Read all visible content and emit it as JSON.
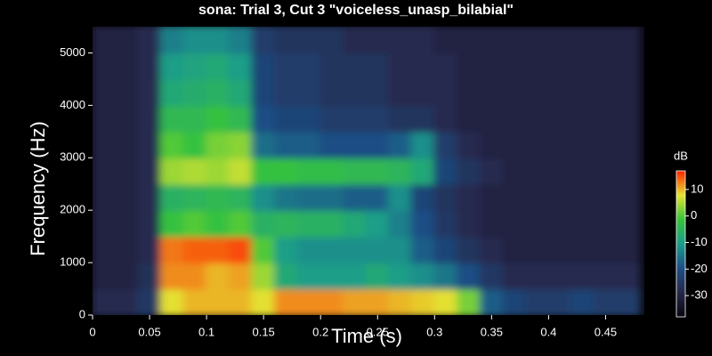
{
  "chart_data": {
    "type": "heatmap",
    "title": "sona: Trial 3, Cut 3 \"voiceless_unasp_bilabial\"",
    "xlabel": "Time (s)",
    "ylabel": "Frequency (Hz)",
    "colorbar_label": "dB",
    "x": [
      0.01,
      0.03,
      0.05,
      0.07,
      0.09,
      0.11,
      0.13,
      0.15,
      0.17,
      0.19,
      0.21,
      0.23,
      0.25,
      0.27,
      0.29,
      0.31,
      0.33,
      0.35,
      0.37,
      0.39,
      0.41,
      0.43,
      0.45,
      0.47
    ],
    "y": [
      250,
      750,
      1250,
      1750,
      2250,
      2750,
      3250,
      3750,
      4250,
      4750,
      5250
    ],
    "values": [
      [
        -28,
        -28,
        -25,
        8,
        10,
        10,
        10,
        8,
        12,
        12,
        12,
        11,
        11,
        10,
        9,
        8,
        2,
        -18,
        -22,
        -24,
        -24,
        -22,
        -24,
        -24
      ],
      [
        -30,
        -30,
        -27,
        12,
        12,
        10,
        11,
        4,
        -8,
        -10,
        -10,
        -10,
        -8,
        -10,
        -12,
        -15,
        -20,
        -25,
        -28,
        -28,
        -28,
        -28,
        -28,
        -28
      ],
      [
        -30,
        -30,
        -28,
        13,
        14,
        14,
        15,
        0,
        -10,
        -12,
        -12,
        -12,
        -12,
        -12,
        -18,
        -22,
        -26,
        -28,
        -30,
        -30,
        -30,
        -30,
        -30,
        -30
      ],
      [
        -30,
        -30,
        -28,
        -2,
        0,
        -2,
        0,
        -6,
        -5,
        -6,
        -6,
        -8,
        -10,
        -14,
        -20,
        -25,
        -28,
        -30,
        -30,
        -30,
        -30,
        -30,
        -30,
        -30
      ],
      [
        -30,
        -30,
        -28,
        -6,
        -5,
        -4,
        -5,
        -12,
        -15,
        -16,
        -16,
        -18,
        -18,
        -12,
        -22,
        -26,
        -28,
        -30,
        -30,
        -30,
        -30,
        -30,
        -30,
        -30
      ],
      [
        -30,
        -30,
        -28,
        4,
        5,
        4,
        6,
        -2,
        -2,
        -3,
        -3,
        -4,
        -4,
        -5,
        -8,
        -22,
        -26,
        -28,
        -30,
        -30,
        -30,
        -30,
        -30,
        -30
      ],
      [
        -30,
        -30,
        -28,
        0,
        -2,
        2,
        3,
        -16,
        -18,
        -18,
        -20,
        -20,
        -20,
        -18,
        -12,
        -24,
        -28,
        -30,
        -30,
        -30,
        -30,
        -30,
        -30,
        -30
      ],
      [
        -30,
        -30,
        -28,
        -4,
        -4,
        -2,
        -4,
        -20,
        -22,
        -22,
        -24,
        -24,
        -24,
        -26,
        -26,
        -28,
        -30,
        -30,
        -30,
        -30,
        -30,
        -30,
        -30,
        -30
      ],
      [
        -30,
        -30,
        -28,
        -8,
        -7,
        -6,
        -8,
        -22,
        -24,
        -24,
        -26,
        -26,
        -26,
        -28,
        -28,
        -28,
        -30,
        -30,
        -30,
        -30,
        -30,
        -30,
        -30,
        -30
      ],
      [
        -30,
        -30,
        -28,
        -10,
        -9,
        -8,
        -10,
        -22,
        -24,
        -24,
        -26,
        -26,
        -26,
        -28,
        -28,
        -28,
        -30,
        -30,
        -30,
        -30,
        -30,
        -30,
        -30,
        -30
      ],
      [
        -30,
        -30,
        -28,
        -14,
        -12,
        -12,
        -14,
        -24,
        -26,
        -26,
        -26,
        -28,
        -28,
        -28,
        -28,
        -30,
        -30,
        -30,
        -30,
        -30,
        -30,
        -30,
        -30,
        -30
      ]
    ],
    "xlim": [
      0,
      0.484
    ],
    "xticks": [
      0,
      0.05,
      0.1,
      0.15,
      0.2,
      0.25,
      0.3,
      0.35,
      0.4,
      0.45
    ],
    "ylim": [
      0,
      5500
    ],
    "yticks": [
      0,
      1000,
      2000,
      3000,
      4000,
      5000
    ],
    "clim": [
      -38,
      17
    ],
    "cticks": [
      10,
      0,
      -10,
      -20,
      -30
    ],
    "colormap": [
      "#06060e",
      "#26284a",
      "#1d4f86",
      "#1c9c8c",
      "#38c43a",
      "#e4e432",
      "#ff2200"
    ]
  }
}
